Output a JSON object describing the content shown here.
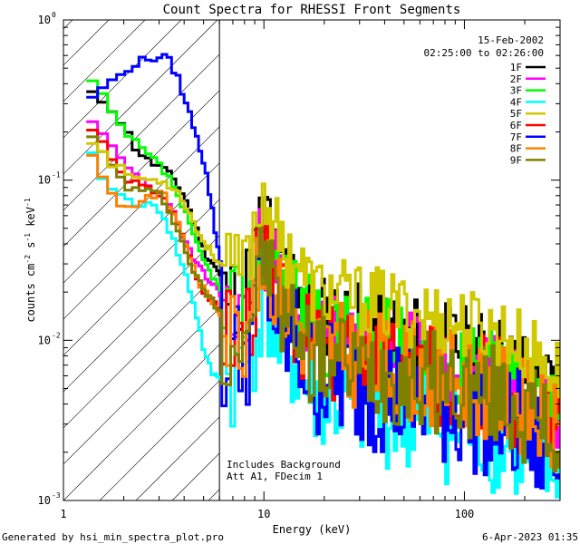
{
  "chart_data": {
    "type": "line",
    "title": "Count Spectra for RHESSI Front Segments",
    "xlabel": "Energy (keV)",
    "ylabel": "counts cm-2 s-1 keV-1",
    "x_scale": "log",
    "y_scale": "log",
    "xlim": [
      1,
      300
    ],
    "ylim": [
      0.001,
      1
    ],
    "x_ticks": [
      {
        "v": 1,
        "label": "1"
      },
      {
        "v": 10,
        "label": "10"
      },
      {
        "v": 100,
        "label": "100"
      }
    ],
    "y_ticks": [
      {
        "v": 1,
        "mant": "10",
        "exp": "0"
      },
      {
        "v": 0.1,
        "mant": "10",
        "exp": "-1"
      },
      {
        "v": 0.01,
        "mant": "10",
        "exp": "-2"
      },
      {
        "v": 0.001,
        "mant": "10",
        "exp": "-3"
      }
    ],
    "hatched_region": {
      "x_max_kev": 6
    },
    "legend": {
      "date": "15-Feb-2002",
      "time_range": "02:25:00 to 02:26:00",
      "placement": "top-right"
    },
    "annotations": {
      "line1": "Includes Background",
      "line2": "Att A1, FDecim 1"
    },
    "series": [
      {
        "name": "1F",
        "color": "#000000",
        "low": [
          [
            1.3,
            0.34
          ],
          [
            1.6,
            0.3
          ],
          [
            1.9,
            0.22
          ],
          [
            2.2,
            0.16
          ],
          [
            2.6,
            0.13
          ],
          [
            3.0,
            0.12
          ],
          [
            3.5,
            0.1
          ],
          [
            4.0,
            0.075
          ],
          [
            4.5,
            0.05
          ],
          [
            5.0,
            0.035
          ],
          [
            5.5,
            0.03
          ],
          [
            6.0,
            0.025
          ]
        ],
        "base": 0.02,
        "noise": 0.8,
        "seed": 11
      },
      {
        "name": "2F",
        "color": "#ff00ff",
        "low": [
          [
            1.3,
            0.22
          ],
          [
            1.6,
            0.17
          ],
          [
            2.0,
            0.12
          ],
          [
            2.5,
            0.095
          ],
          [
            3.0,
            0.08
          ],
          [
            3.5,
            0.06
          ],
          [
            4.0,
            0.04
          ],
          [
            4.5,
            0.03
          ],
          [
            5.0,
            0.025
          ],
          [
            6.0,
            0.02
          ]
        ],
        "base": 0.014,
        "noise": 0.9,
        "seed": 23
      },
      {
        "name": "3F",
        "color": "#00ff00",
        "low": [
          [
            1.3,
            0.41
          ],
          [
            1.5,
            0.32
          ],
          [
            1.8,
            0.22
          ],
          [
            2.2,
            0.17
          ],
          [
            2.6,
            0.14
          ],
          [
            3.0,
            0.12
          ],
          [
            3.5,
            0.09
          ],
          [
            4.0,
            0.06
          ],
          [
            4.5,
            0.04
          ],
          [
            5.0,
            0.03
          ],
          [
            5.5,
            0.025
          ],
          [
            6.0,
            0.02
          ]
        ],
        "base": 0.016,
        "noise": 0.9,
        "seed": 37
      },
      {
        "name": "4F",
        "color": "#00ffff",
        "low": [
          [
            1.3,
            0.14
          ],
          [
            1.6,
            0.09
          ],
          [
            2.0,
            0.075
          ],
          [
            2.5,
            0.07
          ],
          [
            3.0,
            0.065
          ],
          [
            3.5,
            0.04
          ],
          [
            4.0,
            0.025
          ],
          [
            4.5,
            0.015
          ],
          [
            5.0,
            0.008
          ],
          [
            5.5,
            0.006
          ]
        ],
        "base": 0.006,
        "noise": 1.1,
        "seed": 41
      },
      {
        "name": "5F",
        "color": "#d0c800",
        "low": [
          [
            1.3,
            0.18
          ],
          [
            1.6,
            0.13
          ],
          [
            2.0,
            0.11
          ],
          [
            2.5,
            0.1
          ],
          [
            3.0,
            0.1
          ],
          [
            3.5,
            0.09
          ],
          [
            4.0,
            0.07
          ],
          [
            4.5,
            0.05
          ],
          [
            5.0,
            0.04
          ],
          [
            6.0,
            0.03
          ]
        ],
        "base": 0.028,
        "noise": 0.7,
        "seed": 53
      },
      {
        "name": "6F",
        "color": "#ff0000",
        "low": [
          [
            1.3,
            0.2
          ],
          [
            1.6,
            0.15
          ],
          [
            2.0,
            0.1
          ],
          [
            2.5,
            0.09
          ],
          [
            3.0,
            0.08
          ],
          [
            3.5,
            0.06
          ],
          [
            4.0,
            0.04
          ],
          [
            4.5,
            0.025
          ],
          [
            5.0,
            0.02
          ],
          [
            6.0,
            0.015
          ]
        ],
        "base": 0.012,
        "noise": 1.0,
        "seed": 67
      },
      {
        "name": "7F",
        "color": "#0000ff",
        "low": [
          [
            1.3,
            0.32
          ],
          [
            1.4,
            0.37
          ],
          [
            1.6,
            0.4
          ],
          [
            1.8,
            0.44
          ],
          [
            2.0,
            0.5
          ],
          [
            2.3,
            0.55
          ],
          [
            2.6,
            0.57
          ],
          [
            3.0,
            0.6
          ],
          [
            3.3,
            0.55
          ],
          [
            3.6,
            0.45
          ],
          [
            4.0,
            0.3
          ],
          [
            4.5,
            0.2
          ],
          [
            5.0,
            0.12
          ],
          [
            5.3,
            0.08
          ],
          [
            5.6,
            0.05
          ],
          [
            6.0,
            0.03
          ]
        ],
        "base": 0.008,
        "noise": 1.2,
        "seed": 79
      },
      {
        "name": "8F",
        "color": "#ff8000",
        "low": [
          [
            1.3,
            0.15
          ],
          [
            1.5,
            0.1
          ],
          [
            1.8,
            0.07
          ],
          [
            2.2,
            0.07
          ],
          [
            2.6,
            0.08
          ],
          [
            3.0,
            0.085
          ],
          [
            3.5,
            0.06
          ],
          [
            4.0,
            0.04
          ],
          [
            4.5,
            0.025
          ],
          [
            5.0,
            0.02
          ],
          [
            6.0,
            0.015
          ]
        ],
        "base": 0.012,
        "noise": 1.0,
        "seed": 83
      },
      {
        "name": "9F",
        "color": "#808000",
        "low": [
          [
            1.3,
            0.18
          ],
          [
            1.6,
            0.13
          ],
          [
            2.0,
            0.09
          ],
          [
            2.5,
            0.085
          ],
          [
            3.0,
            0.08
          ],
          [
            3.5,
            0.055
          ],
          [
            4.0,
            0.035
          ],
          [
            4.5,
            0.025
          ],
          [
            5.0,
            0.02
          ],
          [
            6.0,
            0.015
          ]
        ],
        "base": 0.011,
        "noise": 1.0,
        "seed": 97
      }
    ]
  },
  "footer": {
    "generated_by": "Generated by hsi_min_spectra_plot.pro",
    "timestamp": "6-Apr-2023 01:35"
  }
}
